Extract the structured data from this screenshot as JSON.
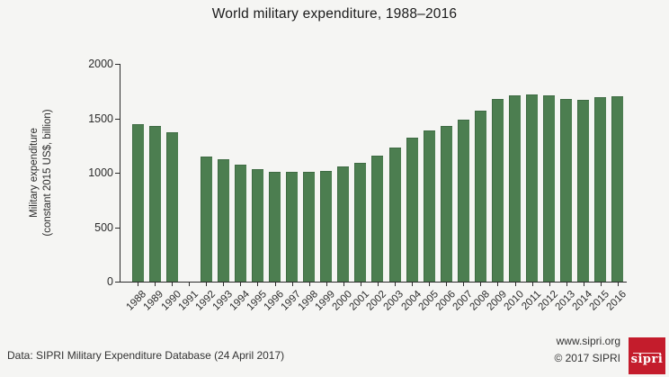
{
  "title": "World military expenditure, 1988–2016",
  "colors": {
    "bar": "#4c7e50",
    "bar_edge": "#3e6b43",
    "axis": "#2b2b2b",
    "background": "#f5f5f3",
    "logo_red": "#c41c2c"
  },
  "chart_data": {
    "type": "bar",
    "title": "World military expenditure, 1988–2016",
    "xlabel": "",
    "ylabel_line1": "Military expenditure",
    "ylabel_line2": "(constant 2015 US$, billion)",
    "ylim": [
      0,
      2000
    ],
    "yticks": [
      0,
      500,
      1000,
      1500,
      2000
    ],
    "grid": false,
    "legend": "none",
    "categories": [
      "1988",
      "1989",
      "1990",
      "1991",
      "1992",
      "1993",
      "1994",
      "1995",
      "1996",
      "1997",
      "1998",
      "1999",
      "2000",
      "2001",
      "2002",
      "2003",
      "2004",
      "2005",
      "2006",
      "2007",
      "2008",
      "2009",
      "2010",
      "2011",
      "2012",
      "2013",
      "2014",
      "2015",
      "2016"
    ],
    "values": [
      1450,
      1430,
      1370,
      null,
      1150,
      1120,
      1075,
      1030,
      1005,
      1005,
      1005,
      1015,
      1055,
      1090,
      1155,
      1235,
      1320,
      1385,
      1430,
      1485,
      1570,
      1675,
      1710,
      1715,
      1710,
      1680,
      1670,
      1695,
      1705
    ],
    "missing_years": [
      "1991"
    ]
  },
  "footer": {
    "source": "Data: SIPRI Military Expenditure Database (24 April 2017)",
    "website": "www.sipri.org",
    "copyright": "© 2017 SIPRI",
    "logo_text": "sipri"
  }
}
